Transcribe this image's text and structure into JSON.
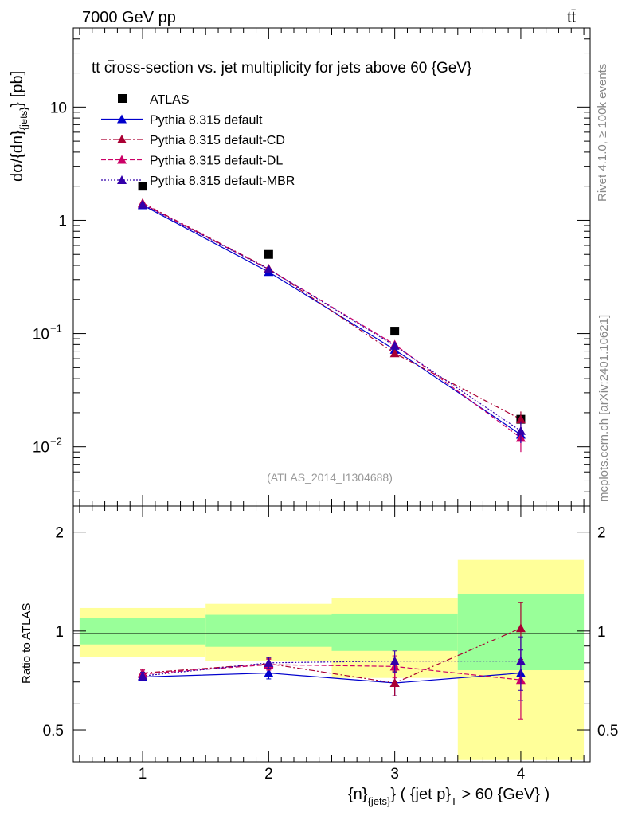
{
  "header": {
    "energy": "7000 GeV pp",
    "process": "tt̄",
    "watermark": "(ATLAS_2014_I1304688)",
    "rivet": "Rivet 4.1.0, ≥ 100k events",
    "mcplots": "mcplots.cern.ch [arXiv:2401.10621]"
  },
  "chart_data": [
    {
      "type": "scatter",
      "title": "tt̄ cross-section vs. jet multiplicity for jets above 60 {GeV}",
      "title_parts": [
        "t",
        "t",
        " cross-section vs. jet multiplicity for jets above 60 {GeV}"
      ],
      "ylabel": "dσ/{dn}_{jets} [pb]",
      "ylabel_parts": {
        "main": "dσ/{dn}",
        "sub": "{jets}",
        "tail": "} [pb]"
      },
      "yscale": "log",
      "ylim": [
        0.003,
        50
      ],
      "xlim": [
        0.45,
        4.55
      ],
      "x": [
        1,
        2,
        3,
        4
      ],
      "yticks": [
        {
          "value": 10,
          "label": "10"
        },
        {
          "value": 1,
          "label": "1"
        },
        {
          "value": 0.1,
          "label": "10",
          "exp": "−1"
        },
        {
          "value": 0.01,
          "label": "10",
          "exp": "−2"
        }
      ],
      "legend_position": "top-left",
      "series": [
        {
          "name": "ATLAS",
          "color": "#000000",
          "style": "marker",
          "marker": "square",
          "values": [
            2.0,
            0.5,
            0.105,
            0.0175
          ],
          "errors": [
            0.1,
            0.03,
            0.008,
            0.002
          ]
        },
        {
          "name": "Pythia 8.315 default",
          "color": "#0000cc",
          "style": "solid",
          "marker": "triangle",
          "values": [
            1.36,
            0.35,
            0.072,
            0.0128
          ],
          "errors": [
            0.02,
            0.008,
            0.003,
            0.002
          ]
        },
        {
          "name": "Pythia 8.315 default-CD",
          "color": "#aa0033",
          "style": "dashdot",
          "marker": "triangle",
          "values": [
            1.42,
            0.375,
            0.067,
            0.0175
          ],
          "errors": [
            0.02,
            0.008,
            0.003,
            0.003
          ]
        },
        {
          "name": "Pythia 8.315 default-DL",
          "color": "#cc0066",
          "style": "dashed",
          "marker": "triangle",
          "values": [
            1.4,
            0.37,
            0.08,
            0.012
          ],
          "errors": [
            0.02,
            0.008,
            0.003,
            0.003
          ]
        },
        {
          "name": "Pythia 8.315 default-MBR",
          "color": "#3300aa",
          "style": "dotted",
          "marker": "triangle",
          "values": [
            1.38,
            0.37,
            0.078,
            0.0138
          ],
          "errors": [
            0.02,
            0.008,
            0.003,
            0.003
          ]
        }
      ]
    },
    {
      "type": "scatter",
      "ylabel": "Ratio to ATLAS",
      "xlabel": "{n}_{jets} ( {jet p}_T > 60 {GeV} )",
      "xlabel_parts": {
        "a": "{n}",
        "a_sub": "{jets}",
        "b": "} ( {jet p}",
        "b_sub": "T",
        "c": " > 60 {GeV} )"
      },
      "ylim": [
        0.4,
        2.4
      ],
      "yscale": "log",
      "xlim": [
        0.45,
        4.55
      ],
      "xticks": [
        1,
        2,
        3,
        4
      ],
      "yticks": [
        {
          "value": 0.5,
          "label": "0.5"
        },
        {
          "value": 1,
          "label": "1"
        },
        {
          "value": 2,
          "label": "2"
        }
      ],
      "bands": {
        "x_edges": [
          0.5,
          1.5,
          2.5,
          3.5,
          4.5
        ],
        "inner": {
          "color": "#99ff99",
          "low": [
            0.91,
            0.895,
            0.87,
            0.76
          ],
          "high": [
            1.095,
            1.12,
            1.13,
            1.295
          ]
        },
        "outer": {
          "color": "#ffff99",
          "low": [
            0.835,
            0.81,
            0.72,
            0.405
          ],
          "high": [
            1.175,
            1.21,
            1.26,
            1.645
          ]
        }
      },
      "series": [
        {
          "name": "Pythia 8.315 default",
          "color": "#0000cc",
          "style": "solid",
          "values": [
            0.725,
            0.745,
            0.695,
            0.745
          ],
          "errors": [
            0.02,
            0.03,
            0.06,
            0.13
          ]
        },
        {
          "name": "Pythia 8.315 default-CD",
          "color": "#aa0033",
          "style": "dashdot",
          "values": [
            0.745,
            0.795,
            0.695,
            1.02
          ],
          "errors": [
            0.02,
            0.03,
            0.06,
            0.2
          ]
        },
        {
          "name": "Pythia 8.315 default-DL",
          "color": "#cc0066",
          "style": "dashed",
          "values": [
            0.74,
            0.79,
            0.78,
            0.71
          ],
          "errors": [
            0.02,
            0.03,
            0.06,
            0.17
          ]
        },
        {
          "name": "Pythia 8.315 default-MBR",
          "color": "#3300aa",
          "style": "dotted",
          "values": [
            0.73,
            0.8,
            0.81,
            0.81
          ],
          "errors": [
            0.02,
            0.03,
            0.06,
            0.15
          ]
        }
      ]
    }
  ]
}
